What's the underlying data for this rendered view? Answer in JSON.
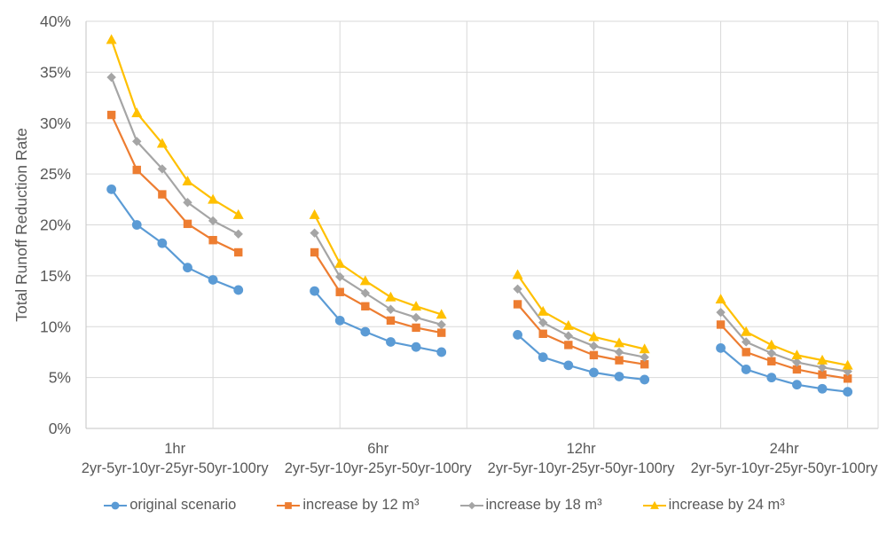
{
  "chart_data": {
    "type": "line",
    "title": "",
    "xlabel": "",
    "ylabel": "Total Runoff Reduction Rate",
    "ylim": [
      0,
      40
    ],
    "y_tick_step": 5,
    "y_tick_labels": [
      "0%",
      "5%",
      "10%",
      "15%",
      "20%",
      "25%",
      "30%",
      "35%",
      "40%"
    ],
    "grid": true,
    "legend_position": "bottom",
    "x_groups": [
      "1hr",
      "6hr",
      "12hr",
      "24hr"
    ],
    "x_group_sublabel": "2yr-5yr-10yr-25yr-50yr-100ry",
    "x_subcategories": [
      "2yr",
      "5yr",
      "10yr",
      "25yr",
      "50yr",
      "100yr"
    ],
    "series": [
      {
        "name": "original scenario",
        "marker": "circle",
        "color": "#5B9BD5",
        "values": [
          [
            23.5,
            20.0,
            18.2,
            15.8,
            14.6,
            13.6
          ],
          [
            13.5,
            10.6,
            9.5,
            8.5,
            8.0,
            7.5
          ],
          [
            9.2,
            7.0,
            6.2,
            5.5,
            5.1,
            4.8
          ],
          [
            7.9,
            5.8,
            5.0,
            4.3,
            3.9,
            3.6
          ]
        ]
      },
      {
        "name": "increase by 12 m³",
        "marker": "square",
        "color": "#ED7D31",
        "values": [
          [
            30.8,
            25.4,
            23.0,
            20.1,
            18.5,
            17.3
          ],
          [
            17.3,
            13.4,
            12.0,
            10.6,
            9.9,
            9.4
          ],
          [
            12.2,
            9.3,
            8.2,
            7.2,
            6.7,
            6.3
          ],
          [
            10.2,
            7.5,
            6.6,
            5.8,
            5.3,
            4.9
          ]
        ]
      },
      {
        "name": "increase by 18 m³",
        "marker": "diamond",
        "color": "#A5A5A5",
        "values": [
          [
            34.5,
            28.2,
            25.5,
            22.2,
            20.4,
            19.1
          ],
          [
            19.2,
            14.9,
            13.3,
            11.7,
            10.9,
            10.2
          ],
          [
            13.7,
            10.4,
            9.1,
            8.1,
            7.5,
            7.0
          ],
          [
            11.4,
            8.5,
            7.4,
            6.5,
            6.0,
            5.6
          ]
        ]
      },
      {
        "name": "increase by 24 m³",
        "marker": "triangle",
        "color": "#FFC000",
        "values": [
          [
            38.2,
            31.0,
            28.0,
            24.3,
            22.5,
            21.0
          ],
          [
            21.0,
            16.2,
            14.5,
            12.9,
            12.0,
            11.2
          ],
          [
            15.1,
            11.5,
            10.1,
            9.0,
            8.4,
            7.8
          ],
          [
            12.7,
            9.5,
            8.2,
            7.2,
            6.7,
            6.2
          ]
        ]
      }
    ],
    "colors": {
      "grid": "#D9D9D9",
      "axis": "#C6C6C6",
      "text": "#595959",
      "background": "#FFFFFF"
    }
  }
}
